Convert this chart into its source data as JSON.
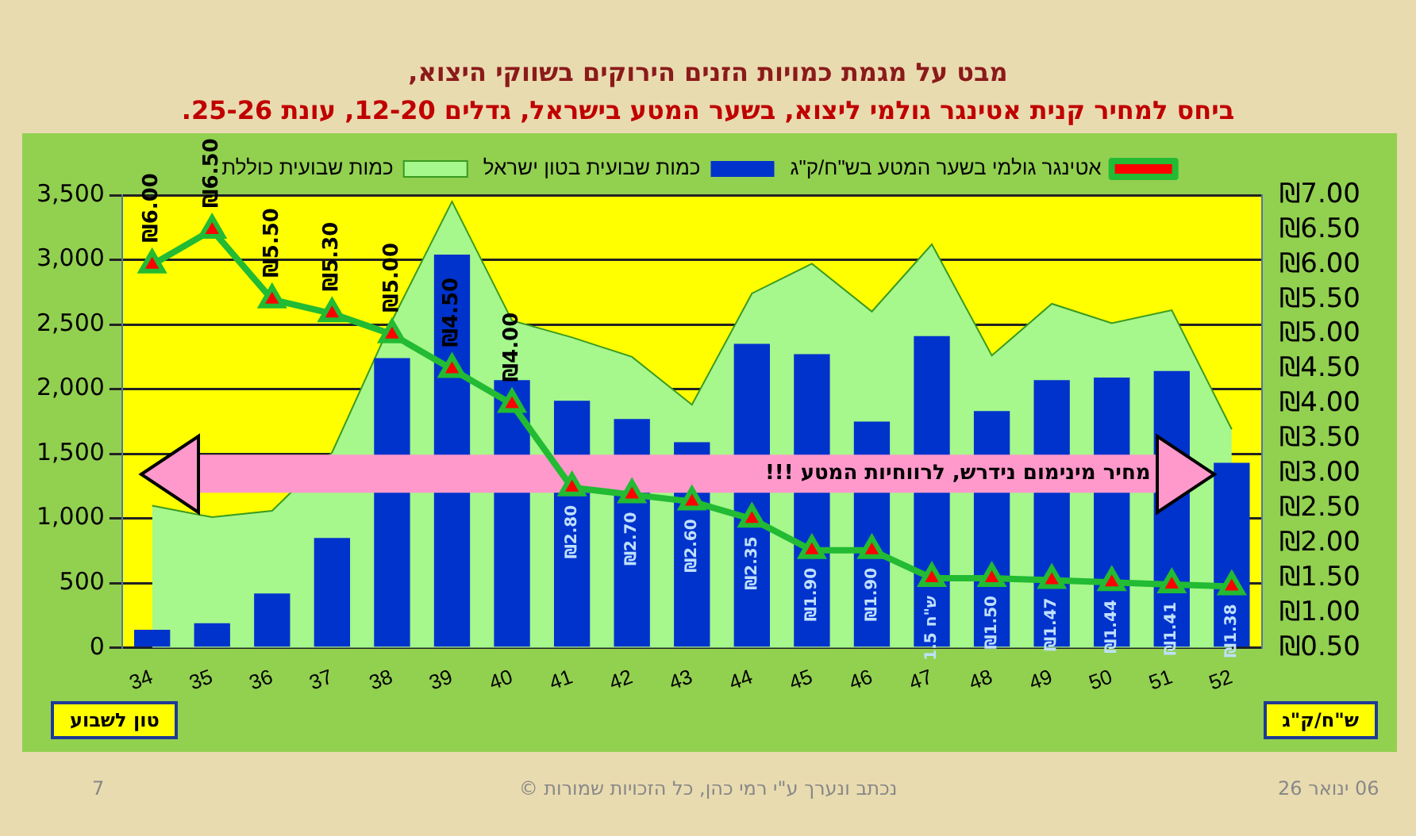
{
  "chart_data": {
    "type": "bar",
    "title": "מבט על מגמת כמויות הזנים הירוקים בשווקי היצוא,",
    "subtitle": "ביחס למחיר קנית אטינגר גולמי ליצוא, בשער המטע בישראל, גדלים 12-20, עונת 25-26.",
    "ylabel": "טון לשבוע",
    "y2label": "ש\"ח/ק\"ג",
    "annotations": [
      "06 ינואר 26",
      "נכתב ונערך ע\"י רמי כהן, כל הזכויות שמורות ©",
      "7"
    ],
    "categories": [
      "34",
      "35",
      "36",
      "37",
      "38",
      "39",
      "40",
      "41",
      "42",
      "43",
      "44",
      "45",
      "46",
      "47",
      "48",
      "49",
      "50",
      "51",
      "52"
    ],
    "series": [
      {
        "type": "area",
        "name": "כמות שבועית כוללת",
        "color": "#a6f78c",
        "values": [
          1100,
          1010,
          1060,
          1510,
          2530,
          3450,
          2530,
          2400,
          2250,
          1880,
          2740,
          2970,
          2600,
          3120,
          2260,
          2660,
          2510,
          2610,
          1690
        ]
      },
      {
        "type": "bar",
        "name": "כמות שבועית בטון ישראל",
        "color": "#0033cc",
        "values": [
          140,
          190,
          420,
          850,
          2240,
          3040,
          2070,
          1910,
          1770,
          1590,
          2350,
          2270,
          1750,
          2410,
          1830,
          2070,
          2090,
          2140,
          1430
        ]
      },
      {
        "type": "line",
        "name": "אטינגר גולמי בשער המטע בש\"ח/ק\"ג",
        "color": "#22bb33",
        "axis": "y2",
        "marker": "triangle",
        "values": [
          6.0,
          6.5,
          5.5,
          5.3,
          5.0,
          4.5,
          4.0,
          2.8,
          2.7,
          2.6,
          2.35,
          1.9,
          1.9,
          1.5,
          1.5,
          1.47,
          1.44,
          1.41,
          1.38
        ],
        "value_labels": [
          "₪6.00",
          "₪6.50",
          "₪5.50",
          "₪5.30",
          "₪5.00",
          "₪4.50",
          "₪4.00",
          "₪2.80",
          "₪2.70",
          "₪2.60",
          "₪2.35",
          "₪1.90",
          "₪1.90",
          "ש\"ח 1.5",
          "₪1.50",
          "₪1.47",
          "₪1.44",
          "₪1.41",
          "₪1.38"
        ]
      }
    ],
    "ylim": [
      0,
      3500
    ],
    "yticks": [
      0,
      {
        "value": 500,
        "label": "500"
      },
      {
        "value": 1000,
        "label": "1,000"
      },
      {
        "value": 1500,
        "label": "1,500"
      },
      {
        "value": 2000,
        "label": "2,000"
      },
      {
        "value": 2500,
        "label": "2,500"
      },
      {
        "value": 3000,
        "label": "3,000"
      },
      {
        "value": 3500,
        "label": "3,500"
      }
    ],
    "y2lim": [
      0.5,
      7
    ],
    "y2ticks": [
      {
        "value": 0.5,
        "label": "₪0.50"
      },
      {
        "value": 1,
        "label": "₪1.00"
      },
      {
        "value": 1.5,
        "label": "₪1.50"
      },
      {
        "value": 2,
        "label": "₪2.00"
      },
      {
        "value": 2.5,
        "label": "₪2.50"
      },
      {
        "value": 3,
        "label": "₪3.00"
      },
      {
        "value": 3.5,
        "label": "₪3.50"
      },
      {
        "value": 4,
        "label": "₪4.00"
      },
      {
        "value": 4.5,
        "label": "₪4.50"
      },
      {
        "value": 5,
        "label": "₪5.00"
      },
      {
        "value": 5.5,
        "label": "₪5.50"
      },
      {
        "value": 6,
        "label": "₪6.00"
      },
      {
        "value": 6.5,
        "label": "₪6.50"
      },
      {
        "value": 7,
        "label": "₪7.00"
      }
    ],
    "ref_lines": [
      {
        "axis": "y2",
        "value": 3,
        "label": "מחיר מינימום נידרש, לרווחיות המטע !!!",
        "color": "#ff99cc"
      }
    ],
    "grid": "y",
    "legend": "top"
  }
}
